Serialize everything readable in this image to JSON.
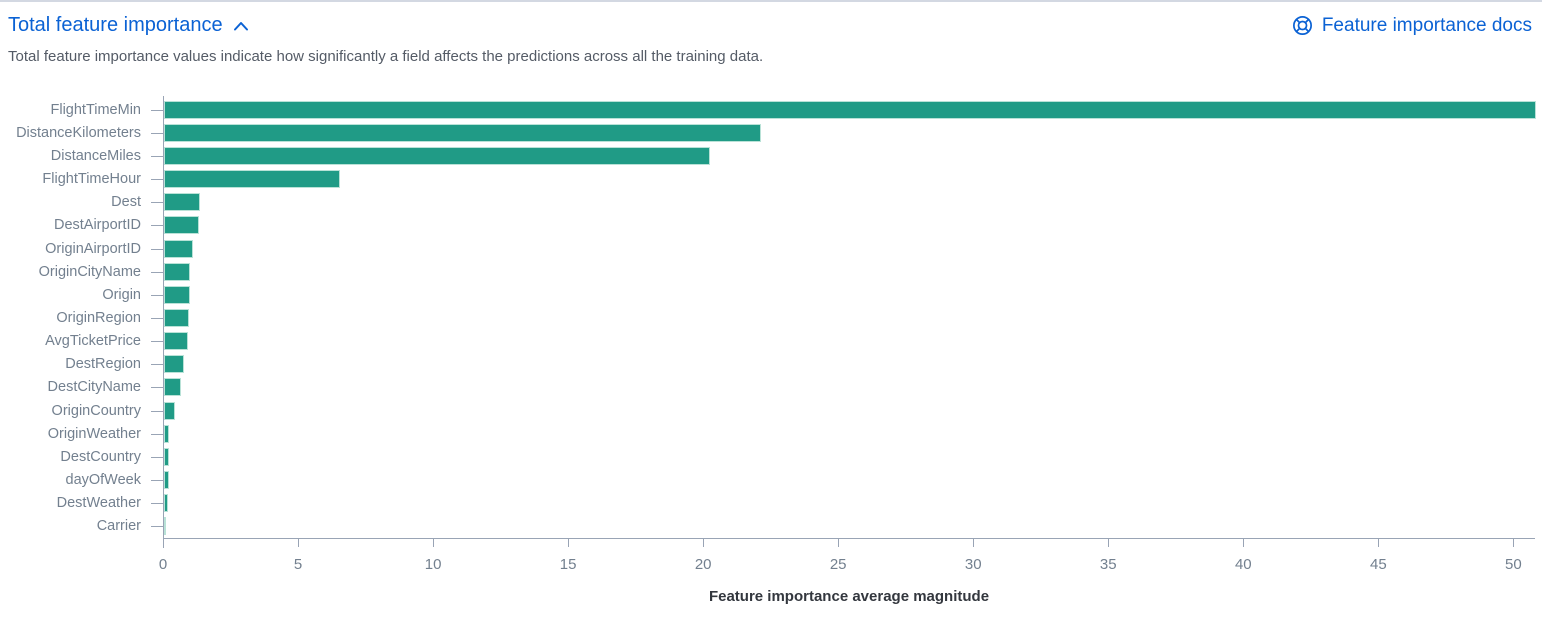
{
  "header": {
    "title": "Total feature importance",
    "docs_link_label": "Feature importance docs",
    "description": "Total feature importance values indicate how significantly a field affects the predictions across all the training data.",
    "collapse_icon": "chevron-up-icon",
    "docs_icon": "help-lifering-icon"
  },
  "colors": {
    "link_blue": "#0b62d4",
    "bar_teal": "#209b86",
    "bar_border": "#b9e2d7",
    "axis_line": "#99a4b5",
    "axis_label": "#73808f",
    "axis_title_text": "#33373e",
    "description_text": "#545b66"
  },
  "chart_data": {
    "type": "bar",
    "orientation": "horizontal",
    "title": "",
    "xlabel": "Feature importance average magnitude",
    "ylabel": "",
    "legend": "none",
    "grid": false,
    "xlim": [
      0,
      50.8
    ],
    "x_ticks": [
      0,
      5,
      10,
      15,
      20,
      25,
      30,
      35,
      40,
      45,
      50
    ],
    "categories": [
      "FlightTimeMin",
      "DistanceKilometers",
      "DistanceMiles",
      "FlightTimeHour",
      "Dest",
      "DestAirportID",
      "OriginAirportID",
      "OriginCityName",
      "Origin",
      "OriginRegion",
      "AvgTicketPrice",
      "DestRegion",
      "DestCityName",
      "OriginCountry",
      "OriginWeather",
      "DestCountry",
      "dayOfWeek",
      "DestWeather",
      "Carrier"
    ],
    "values": [
      50.8,
      22.1,
      20.2,
      6.5,
      1.34,
      1.31,
      1.06,
      0.98,
      0.96,
      0.92,
      0.88,
      0.73,
      0.62,
      0.42,
      0.2,
      0.19,
      0.17,
      0.15,
      0.06
    ],
    "bar_color": "#209b86"
  }
}
